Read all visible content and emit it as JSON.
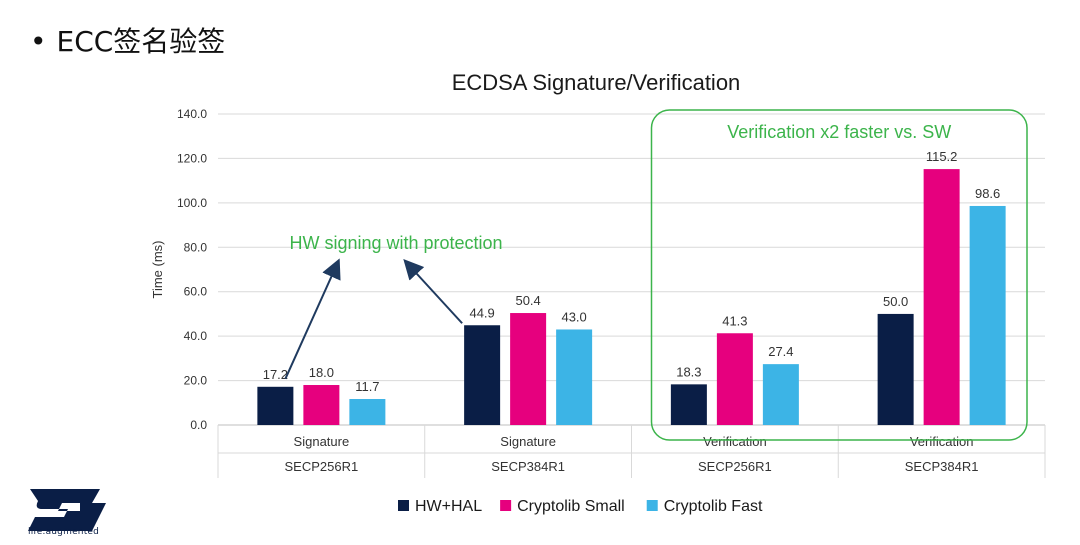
{
  "slide": {
    "bullet_glyph": "•",
    "heading": "ECC签名验签"
  },
  "logo": {
    "tagline": "life.augmented",
    "color": "#0A1E46",
    "icon": "st-logo-icon"
  },
  "chart_data": {
    "type": "bar",
    "title": "ECDSA Signature/Verification",
    "ylabel": "Time (ms)",
    "xlabel": "",
    "ylim": [
      0,
      140
    ],
    "yticks": [
      "0.0",
      "20.0",
      "40.0",
      "60.0",
      "80.0",
      "100.0",
      "120.0",
      "140.0"
    ],
    "grid": true,
    "legend_position": "bottom",
    "categories": [
      {
        "operation": "Signature",
        "curve": "SECP256R1"
      },
      {
        "operation": "Signature",
        "curve": "SECP384R1"
      },
      {
        "operation": "Verification",
        "curve": "SECP256R1"
      },
      {
        "operation": "Verification",
        "curve": "SECP384R1"
      }
    ],
    "series": [
      {
        "name": "HW+HAL",
        "color": "#0A1E46",
        "values": [
          17.2,
          44.9,
          18.3,
          50.0
        ],
        "labels": [
          "17.2",
          "44.9",
          "18.3",
          "50.0"
        ]
      },
      {
        "name": "Cryptolib Small",
        "color": "#E6007E",
        "values": [
          18.0,
          50.4,
          41.3,
          115.2
        ],
        "labels": [
          "18.0",
          "50.4",
          "41.3",
          "115.2"
        ]
      },
      {
        "name": "Cryptolib Fast",
        "color": "#3CB4E6",
        "values": [
          11.7,
          43.0,
          27.4,
          98.6
        ],
        "labels": [
          "11.7",
          "43.0",
          "27.4",
          "98.6"
        ]
      }
    ],
    "annotations": [
      {
        "text": "HW signing with protection",
        "color": "#3CB44B"
      },
      {
        "text": "Verification x2 faster vs. SW",
        "color": "#3CB44B"
      }
    ]
  }
}
